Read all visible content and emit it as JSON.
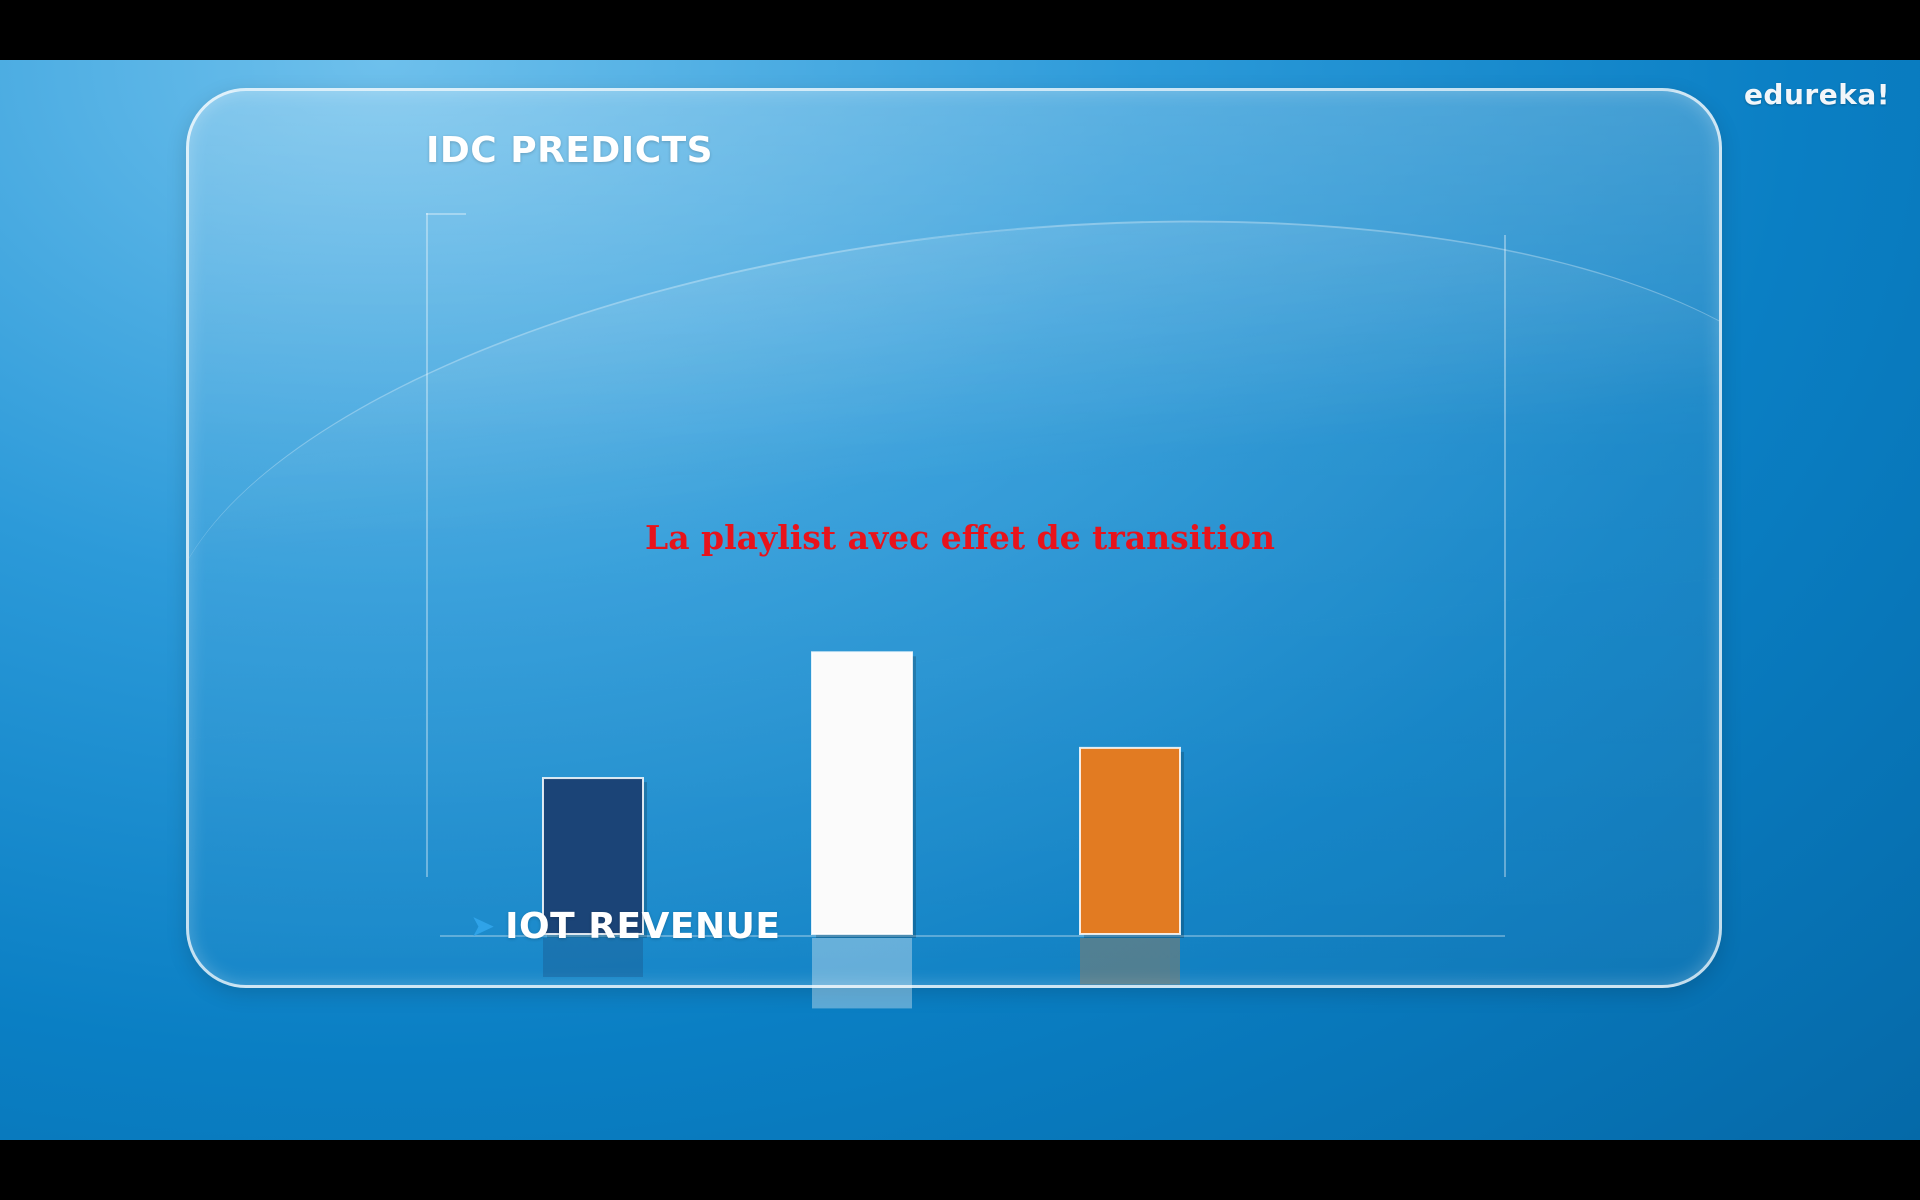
{
  "brand": {
    "logo_text": "edureka!"
  },
  "overlay": {
    "caption": "La playlist avec effet de transition"
  },
  "colors": {
    "bar_1": "#1b4477",
    "bar_2": "#fbfbfb",
    "bar_3": "#e27b22",
    "caption": "#e8131b"
  },
  "chart_data": {
    "type": "bar",
    "title": "IDC PREDICTS",
    "xlabel": "IOT REVENUE",
    "ylabel": "",
    "grid": false,
    "legend": "none",
    "categories": [
      "",
      "",
      ""
    ],
    "values": [
      15.5,
      28,
      18.5
    ],
    "ylim": [
      0,
      66
    ],
    "bar_colors": [
      "#1b4477",
      "#fbfbfb",
      "#e27b22"
    ],
    "reflection": true
  }
}
